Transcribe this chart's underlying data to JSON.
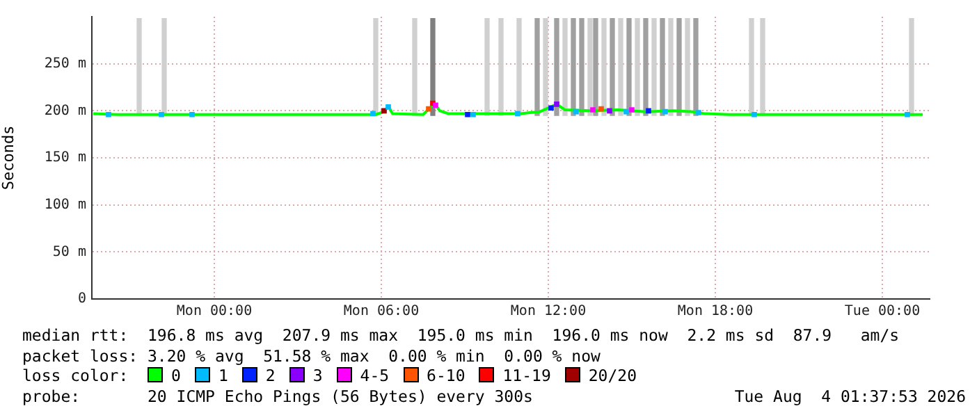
{
  "chart_data": {
    "type": "line",
    "ylabel": "Seconds",
    "legend_title": "loss color:",
    "legend": "bottom",
    "grid": true,
    "marker": "none",
    "xlim": [
      "2026-08-02T19:36",
      "2026-08-04T01:42"
    ],
    "ylim": [
      0,
      300
    ],
    "xticks": [
      {
        "value": "2026-08-03T00:00",
        "label": "Mon 00:00"
      },
      {
        "value": "2026-08-03T06:00",
        "label": "Mon 06:00"
      },
      {
        "value": "2026-08-03T12:00",
        "label": "Mon 12:00"
      },
      {
        "value": "2026-08-03T18:00",
        "label": "Mon 18:00"
      },
      {
        "value": "2026-08-04T00:00",
        "label": "Tue 00:00"
      }
    ],
    "yticks": [
      0,
      {
        "value": 50,
        "label": "50 m"
      },
      {
        "value": 100,
        "label": "100 m"
      },
      {
        "value": 150,
        "label": "150 m"
      },
      {
        "value": 200,
        "label": "200 m"
      },
      {
        "value": 250,
        "label": "250 m"
      }
    ],
    "series": [
      {
        "type": "bar",
        "x": [
          "2026-08-02T21:18",
          "2026-08-02T22:12",
          "2026-08-03T05:48",
          "2026-08-03T07:12",
          "2026-08-03T07:51",
          "2026-08-03T09:48",
          "2026-08-03T10:18",
          "2026-08-03T10:57",
          "2026-08-03T11:36",
          "2026-08-03T11:54",
          "2026-08-03T12:18",
          "2026-08-03T12:36",
          "2026-08-03T12:54",
          "2026-08-03T13:12",
          "2026-08-03T13:30",
          "2026-08-03T13:42",
          "2026-08-03T14:00",
          "2026-08-03T14:18",
          "2026-08-03T14:36",
          "2026-08-03T14:54",
          "2026-08-03T15:12",
          "2026-08-03T15:30",
          "2026-08-03T15:48",
          "2026-08-03T16:06",
          "2026-08-03T16:24",
          "2026-08-03T16:42",
          "2026-08-03T17:00",
          "2026-08-03T17:18",
          "2026-08-03T19:18",
          "2026-08-03T19:42",
          "2026-08-04T01:03"
        ],
        "base": [
          195,
          195,
          195,
          195,
          195,
          195,
          195,
          195,
          195,
          195,
          195,
          195,
          195,
          195,
          195,
          195,
          195,
          195,
          195,
          195,
          195,
          195,
          195,
          195,
          195,
          195,
          195,
          195,
          195,
          195,
          195
        ],
        "values": [
          103,
          103,
          103,
          103,
          103,
          103,
          103,
          103,
          103,
          103,
          103,
          103,
          103,
          103,
          103,
          103,
          103,
          103,
          103,
          103,
          103,
          103,
          103,
          103,
          103,
          103,
          103,
          103,
          103,
          103,
          103
        ],
        "colors": [
          "#d0d0d0",
          "#d0d0d0",
          "#d0d0d0",
          "#d0d0d0",
          "#808080",
          "#d0d0d0",
          "#d0d0d0",
          "#d0d0d0",
          "#a0a0a0",
          "#d0d0d0",
          "#a0a0a0",
          "#d0d0d0",
          "#a0a0a0",
          "#a0a0a0",
          "#d0d0d0",
          "#a0a0a0",
          "#d0d0d0",
          "#a0a0a0",
          "#d0d0d0",
          "#a0a0a0",
          "#d0d0d0",
          "#a0a0a0",
          "#d0d0d0",
          "#a0a0a0",
          "#d0d0d0",
          "#a0a0a0",
          "#d0d0d0",
          "#a0a0a0",
          "#d0d0d0",
          "#d0d0d0",
          "#d0d0d0"
        ]
      },
      {
        "name": "0",
        "color": "#00ff00",
        "x": [
          "2026-08-02T19:39",
          "2026-08-02T20:30",
          "2026-08-02T23:00",
          "2026-08-03T03:00",
          "2026-08-03T05:48",
          "2026-08-03T06:06",
          "2026-08-03T06:15",
          "2026-08-03T06:24",
          "2026-08-03T07:30",
          "2026-08-03T07:45",
          "2026-08-03T07:54",
          "2026-08-03T08:06",
          "2026-08-03T08:24",
          "2026-08-03T09:00",
          "2026-08-03T10:00",
          "2026-08-03T11:00",
          "2026-08-03T11:42",
          "2026-08-03T12:18",
          "2026-08-03T12:36",
          "2026-08-03T13:30",
          "2026-08-03T14:30",
          "2026-08-03T15:30",
          "2026-08-03T16:30",
          "2026-08-03T17:12",
          "2026-08-03T17:36",
          "2026-08-03T18:30",
          "2026-08-03T21:00",
          "2026-08-04T01:27"
        ],
        "values": [
          197,
          196,
          196,
          196,
          196,
          199,
          205,
          197,
          196,
          203,
          208,
          200,
          197,
          197,
          197,
          197,
          199,
          207,
          201,
          200,
          201,
          199,
          200,
          199,
          197,
          196,
          196,
          196
        ]
      },
      {
        "type": "scatter",
        "marker": "square",
        "name": "1",
        "color": "#00bbff",
        "x": [
          "2026-08-02T20:12",
          "2026-08-02T22:06",
          "2026-08-02T23:12",
          "2026-08-03T05:42",
          "2026-08-03T06:15",
          "2026-08-03T09:18",
          "2026-08-03T10:54",
          "2026-08-03T13:00",
          "2026-08-03T14:48",
          "2026-08-03T16:12",
          "2026-08-03T17:24",
          "2026-08-03T19:24",
          "2026-08-04T00:54"
        ],
        "values": [
          196,
          196,
          196,
          197,
          204,
          196,
          197,
          199,
          199,
          199,
          198,
          196,
          196
        ]
      },
      {
        "type": "scatter",
        "marker": "square",
        "name": "2",
        "color": "#0022ff",
        "x": [
          "2026-08-03T09:06",
          "2026-08-03T12:06",
          "2026-08-03T15:36"
        ],
        "values": [
          196,
          203,
          200
        ]
      },
      {
        "type": "scatter",
        "marker": "square",
        "name": "3",
        "color": "#8a00ff",
        "x": [
          "2026-08-03T12:18",
          "2026-08-03T14:12"
        ],
        "values": [
          207,
          200
        ]
      },
      {
        "type": "scatter",
        "marker": "square",
        "name": "4-5",
        "color": "#ff00ff",
        "x": [
          "2026-08-03T07:57",
          "2026-08-03T13:36",
          "2026-08-03T15:00"
        ],
        "values": [
          206,
          201,
          201
        ]
      },
      {
        "type": "scatter",
        "marker": "square",
        "name": "6-10",
        "color": "#ff5500",
        "x": [
          "2026-08-03T07:42",
          "2026-08-03T13:54"
        ],
        "values": [
          202,
          202
        ]
      },
      {
        "type": "scatter",
        "marker": "square",
        "name": "11-19",
        "color": "#ff0000",
        "x": [
          "2026-08-03T07:51"
        ],
        "values": [
          208
        ]
      },
      {
        "type": "scatter",
        "marker": "square",
        "name": "20/20",
        "color": "#a10000",
        "x": [
          "2026-08-03T06:06"
        ],
        "values": [
          200
        ]
      }
    ],
    "annotations": [
      "median rtt:  196.8 ms avg  207.9 ms max  195.0 ms min  196.0 ms now  2.2 ms sd  87.9   am/s",
      "packet loss: 3.20 % avg  51.58 % max  0.00 % min  0.00 % now",
      "probe:       20 ICMP Echo Pings (56 Bytes) every 300s",
      "Tue Aug  4 01:37:53 2026"
    ]
  }
}
